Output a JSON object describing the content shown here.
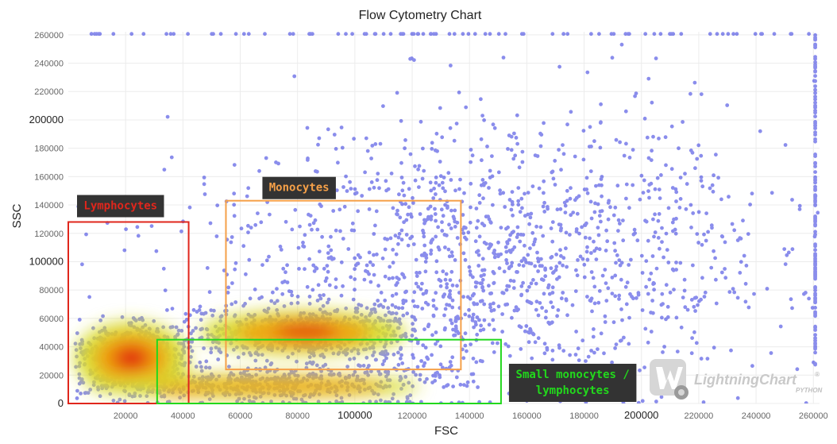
{
  "chart_data": {
    "type": "scatter",
    "title": "Flow Cytometry Chart",
    "xlabel": "FSC",
    "ylabel": "SSC",
    "xlim": [
      0,
      262144
    ],
    "ylim": [
      0,
      262144
    ],
    "grid": true,
    "x_ticks": [
      {
        "value": 20000,
        "label": "20000",
        "major": false
      },
      {
        "value": 40000,
        "label": "40000",
        "major": false
      },
      {
        "value": 60000,
        "label": "60000",
        "major": false
      },
      {
        "value": 80000,
        "label": "80000",
        "major": false
      },
      {
        "value": 100000,
        "label": "100000",
        "major": true
      },
      {
        "value": 120000,
        "label": "120000",
        "major": false
      },
      {
        "value": 140000,
        "label": "140000",
        "major": false
      },
      {
        "value": 160000,
        "label": "160000",
        "major": false
      },
      {
        "value": 180000,
        "label": "180000",
        "major": false
      },
      {
        "value": 200000,
        "label": "200000",
        "major": true
      },
      {
        "value": 220000,
        "label": "220000",
        "major": false
      },
      {
        "value": 240000,
        "label": "240000",
        "major": false
      },
      {
        "value": 260000,
        "label": "260000",
        "major": false
      }
    ],
    "y_ticks": [
      {
        "value": 0,
        "label": "0",
        "major": true
      },
      {
        "value": 20000,
        "label": "20000",
        "major": false
      },
      {
        "value": 40000,
        "label": "40000",
        "major": false
      },
      {
        "value": 60000,
        "label": "60000",
        "major": false
      },
      {
        "value": 80000,
        "label": "80000",
        "major": false
      },
      {
        "value": 100000,
        "label": "100000",
        "major": true
      },
      {
        "value": 120000,
        "label": "120000",
        "major": false
      },
      {
        "value": 140000,
        "label": "140000",
        "major": false
      },
      {
        "value": 160000,
        "label": "160000",
        "major": false
      },
      {
        "value": 180000,
        "label": "180000",
        "major": false
      },
      {
        "value": 200000,
        "label": "200000",
        "major": true
      },
      {
        "value": 220000,
        "label": "220000",
        "major": false
      },
      {
        "value": 240000,
        "label": "240000",
        "major": false
      },
      {
        "value": 260000,
        "label": "260000",
        "major": false
      }
    ],
    "point_color": "#2a2fdc",
    "density_colors": [
      "#2a2fdc",
      "#d8dc30",
      "#f0a010",
      "#e02010"
    ],
    "populations": [
      {
        "cx": 22000,
        "cy": 32000,
        "sx": 9000,
        "sy": 11000,
        "weight": 0.2
      },
      {
        "cx": 82000,
        "cy": 50000,
        "sx": 22000,
        "sy": 10000,
        "weight": 0.18
      },
      {
        "cx": 65000,
        "cy": 14000,
        "sx": 30000,
        "sy": 6000,
        "weight": 0.14
      },
      {
        "cx": 140000,
        "cy": 95000,
        "sx": 50000,
        "sy": 50000,
        "weight": 0.4
      },
      {
        "cx": 180000,
        "cy": 130000,
        "sx": 40000,
        "sy": 45000,
        "weight": 0.08
      }
    ],
    "gates": [
      {
        "label": "Lymphocytes",
        "x0": 0,
        "x1": 42000,
        "y0": 0,
        "y1": 128000,
        "color": "#e0261c",
        "label_pos": "above-left"
      },
      {
        "label": "Monocytes",
        "x0": 55000,
        "x1": 137000,
        "y0": 24000,
        "y1": 143000,
        "color": "#f5a048",
        "label_pos": "above-center"
      },
      {
        "label": "Small monocytes / lymphocytes",
        "lines": [
          "Small monocytes /",
          "lymphocytes"
        ],
        "x0": 31000,
        "x1": 151000,
        "y0": 0,
        "y1": 45000,
        "color": "#22d81c",
        "label_pos": "right"
      }
    ],
    "watermark": {
      "brand": "LightningChart",
      "sub": "PYTHON",
      "mark": "®"
    }
  }
}
